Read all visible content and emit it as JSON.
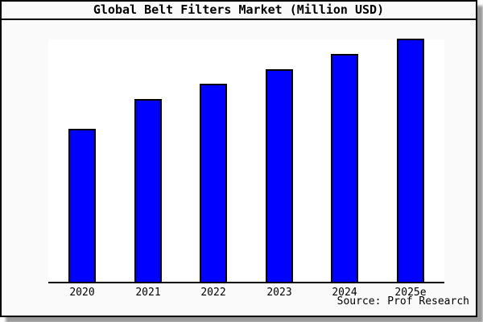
{
  "window": {
    "page_background": "#ffffff",
    "frame_background": "#fafafa",
    "frame_border_color": "#000000",
    "shadow_color": "#999999"
  },
  "chart_data": {
    "type": "bar",
    "title": "Global Belt Filters Market (Million USD)",
    "categories": [
      "2020",
      "2021",
      "2022",
      "2023",
      "2024",
      "2025e"
    ],
    "values": [
      62.7,
      74.9,
      81.2,
      87.1,
      93.4,
      99.7
    ],
    "value_note": "No y-axis scale shown in image; values are relative bar heights as percent of plot height",
    "ylim": [
      0,
      100
    ],
    "xlabel": "",
    "ylabel": "",
    "grid": false,
    "legend": "none",
    "y_axis_visible": false,
    "bar_color": "#0000ff",
    "bar_border_color": "#000000",
    "plot_background": "#ffffff",
    "source": "Source: Prof Research"
  }
}
